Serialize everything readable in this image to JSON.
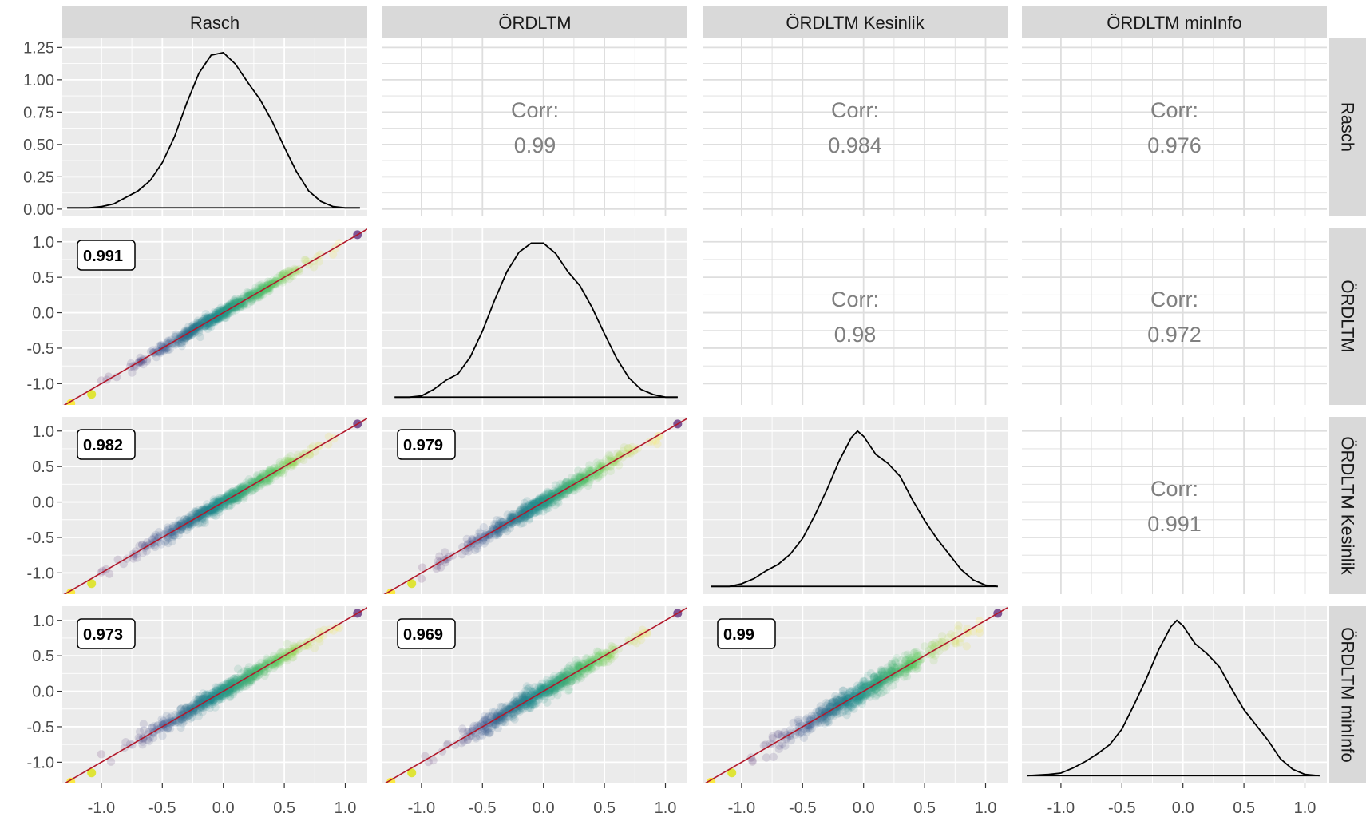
{
  "chart_data": {
    "type": "scatter",
    "variables": [
      "Rasch",
      "ÖRDLTM",
      "ÖRDLTM Kesinlik",
      "ÖRDLTM minInfo"
    ],
    "x_ticks": [
      "-1.0",
      "-0.5",
      "0.0",
      "0.5",
      "1.0"
    ],
    "x_tick_values": [
      -1.0,
      -0.5,
      0.0,
      0.5,
      1.0
    ],
    "xlim": [
      -1.32,
      1.18
    ],
    "scatter_ticks": [
      "1.0",
      "0.5",
      "0.0",
      "-0.5",
      "-1.0"
    ],
    "scatter_tick_values": [
      1.0,
      0.5,
      0.0,
      -0.5,
      -1.0
    ],
    "scatter_ylim": [
      -1.3,
      1.2
    ],
    "density_ticks": [
      "1.25",
      "1.00",
      "0.75",
      "0.50",
      "0.25",
      "0.00"
    ],
    "density_tick_values": [
      1.25,
      1.0,
      0.75,
      0.5,
      0.25,
      0.0
    ],
    "density_ylim": [
      -0.05,
      1.32
    ],
    "corr_label": "Corr:",
    "upper_correlations": [
      {
        "row": 0,
        "col": 1,
        "value": "0.99"
      },
      {
        "row": 0,
        "col": 2,
        "value": "0.984"
      },
      {
        "row": 0,
        "col": 3,
        "value": "0.976"
      },
      {
        "row": 1,
        "col": 2,
        "value": "0.98"
      },
      {
        "row": 1,
        "col": 3,
        "value": "0.972"
      },
      {
        "row": 2,
        "col": 3,
        "value": "0.991"
      }
    ],
    "lower_labels": [
      {
        "row": 1,
        "col": 0,
        "value": "0.991"
      },
      {
        "row": 2,
        "col": 0,
        "value": "0.982"
      },
      {
        "row": 2,
        "col": 1,
        "value": "0.979"
      },
      {
        "row": 3,
        "col": 0,
        "value": "0.973"
      },
      {
        "row": 3,
        "col": 1,
        "value": "0.969"
      },
      {
        "row": 3,
        "col": 2,
        "value": "0.99"
      }
    ],
    "densities": [
      {
        "x": [
          -1.28,
          -1.1,
          -1.0,
          -0.9,
          -0.8,
          -0.7,
          -0.6,
          -0.5,
          -0.4,
          -0.3,
          -0.2,
          -0.1,
          0.0,
          0.1,
          0.2,
          0.3,
          0.4,
          0.5,
          0.6,
          0.7,
          0.8,
          0.9,
          1.0,
          1.12
        ],
        "y": [
          0.01,
          0.01,
          0.02,
          0.04,
          0.09,
          0.14,
          0.22,
          0.36,
          0.56,
          0.82,
          1.05,
          1.19,
          1.21,
          1.12,
          0.98,
          0.85,
          0.68,
          0.48,
          0.29,
          0.14,
          0.06,
          0.02,
          0.01,
          0.01
        ]
      },
      {
        "x": [
          -1.22,
          -1.1,
          -1.0,
          -0.9,
          -0.8,
          -0.7,
          -0.6,
          -0.5,
          -0.4,
          -0.3,
          -0.2,
          -0.1,
          0.0,
          0.1,
          0.2,
          0.3,
          0.4,
          0.5,
          0.6,
          0.7,
          0.8,
          0.9,
          1.0,
          1.1
        ],
        "y": [
          0.01,
          0.01,
          0.02,
          0.07,
          0.14,
          0.19,
          0.32,
          0.52,
          0.76,
          0.98,
          1.13,
          1.2,
          1.2,
          1.12,
          0.98,
          0.87,
          0.7,
          0.5,
          0.31,
          0.16,
          0.07,
          0.03,
          0.01,
          0.01
        ]
      },
      {
        "x": [
          -1.25,
          -1.1,
          -1.0,
          -0.9,
          -0.8,
          -0.7,
          -0.6,
          -0.5,
          -0.4,
          -0.3,
          -0.2,
          -0.1,
          -0.05,
          0.0,
          0.1,
          0.2,
          0.3,
          0.4,
          0.5,
          0.6,
          0.7,
          0.8,
          0.9,
          1.0,
          1.1
        ],
        "y": [
          0.01,
          0.01,
          0.03,
          0.07,
          0.13,
          0.18,
          0.26,
          0.38,
          0.56,
          0.76,
          0.98,
          1.16,
          1.21,
          1.17,
          1.03,
          0.96,
          0.86,
          0.68,
          0.52,
          0.38,
          0.26,
          0.14,
          0.06,
          0.02,
          0.01
        ]
      },
      {
        "x": [
          -1.28,
          -1.1,
          -1.0,
          -0.9,
          -0.8,
          -0.7,
          -0.6,
          -0.5,
          -0.4,
          -0.3,
          -0.2,
          -0.1,
          -0.05,
          0.0,
          0.1,
          0.2,
          0.3,
          0.4,
          0.5,
          0.6,
          0.7,
          0.8,
          0.9,
          1.0,
          1.12
        ],
        "y": [
          0.01,
          0.02,
          0.03,
          0.07,
          0.12,
          0.18,
          0.25,
          0.37,
          0.56,
          0.76,
          0.98,
          1.16,
          1.21,
          1.17,
          1.03,
          0.95,
          0.85,
          0.68,
          0.52,
          0.4,
          0.28,
          0.14,
          0.06,
          0.02,
          0.01
        ]
      }
    ],
    "reference_line": {
      "x": [
        -1.32,
        1.18
      ],
      "y": [
        -1.32,
        1.18
      ]
    },
    "extreme_points": [
      {
        "x": -1.25,
        "y": -1.28,
        "color": "#fde725"
      },
      {
        "x": -1.08,
        "y": -1.15,
        "color": "#dde318"
      },
      {
        "x": 1.1,
        "y": 1.1,
        "color": "#6b3a86"
      }
    ],
    "colors": {
      "panel": "#ebebeb",
      "grid": "#ffffff",
      "strip": "#d9d9d9",
      "reference_line": "#b2182b",
      "density_line": "#000000",
      "viridis": [
        "#fde725",
        "#5ec962",
        "#21918c",
        "#3b528b",
        "#440154"
      ]
    }
  }
}
